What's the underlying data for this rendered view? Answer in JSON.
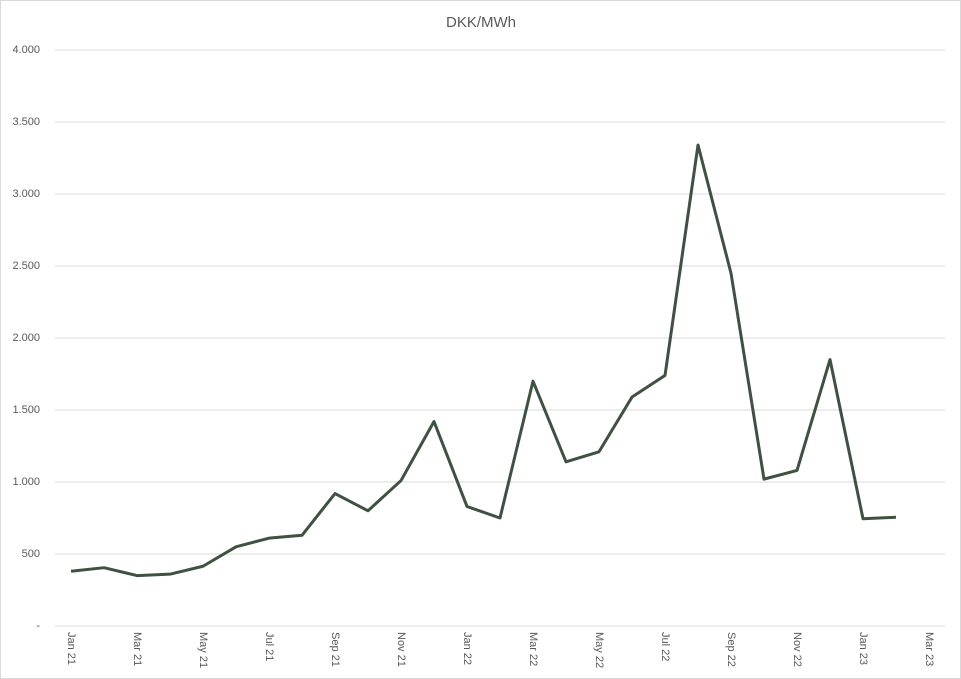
{
  "chart_data": {
    "type": "line",
    "title": "DKK/MWh",
    "categories": [
      "Jan 21",
      null,
      "Mar 21",
      null,
      "May 21",
      null,
      "Jul 21",
      null,
      "Sep 21",
      null,
      "Nov 21",
      null,
      "Jan 22",
      null,
      "Mar 22",
      null,
      "May 22",
      null,
      "Jul 22",
      null,
      "Sep 22",
      null,
      "Nov 22",
      null,
      "Jan 23",
      null,
      "Mar 23"
    ],
    "series": [
      {
        "name": "DKK/MWh",
        "color": "#3f5140",
        "values": [
          380,
          405,
          350,
          360,
          415,
          550,
          610,
          630,
          920,
          800,
          1010,
          1420,
          830,
          750,
          1700,
          1140,
          1210,
          1590,
          1740,
          3340,
          2450,
          1020,
          1080,
          1850,
          745,
          755,
          null
        ]
      }
    ],
    "ylim": [
      0,
      4000
    ],
    "yticks": [
      {
        "value": 0,
        "label": "-"
      },
      500,
      {
        "value": 1000,
        "label": "1.000"
      },
      {
        "value": 1500,
        "label": "1.500"
      },
      {
        "value": 2000,
        "label": "2.000"
      },
      {
        "value": 2500,
        "label": "2.500"
      },
      {
        "value": 3000,
        "label": "3.000"
      },
      {
        "value": 3500,
        "label": "3.500"
      },
      {
        "value": 4000,
        "label": "4.000"
      }
    ],
    "grid": true
  }
}
